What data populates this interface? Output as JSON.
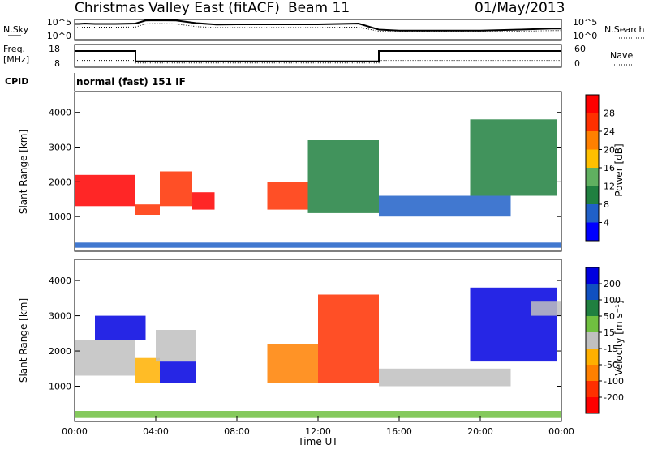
{
  "header": {
    "title": "Christmas Valley East (fitACF)",
    "beam": "Beam 11",
    "date": "01/May/2013"
  },
  "panels": {
    "nsky_label": "N.Sky",
    "nsearch_label": "N.Search",
    "freq_label": "Freq.",
    "freq_unit": "[MHz]",
    "nave_label": "Nave",
    "cpid_label": "CPID",
    "cpid_value": "normal (fast) 151 IF"
  },
  "chart_data": [
    {
      "type": "line",
      "title": "",
      "ylabel_left": "N.Sky",
      "ylabel_right": "N.Search",
      "left_ticks": [
        "10^5",
        "10^0"
      ],
      "right_ticks": [
        "10^5",
        "10^0"
      ],
      "x_hours": [
        0.0,
        0.2,
        0.5,
        1.0,
        2.0,
        3.0,
        3.5,
        4.0,
        5.0,
        6.0,
        7.0,
        8.0,
        10.0,
        12.0,
        13.0,
        14.0,
        15.0,
        16.0,
        18.0,
        20.0,
        22.0,
        23.5,
        24.0
      ],
      "series": [
        {
          "name": "N.Sky",
          "values": [
            0.78,
            0.78,
            0.8,
            0.78,
            0.78,
            0.8,
            0.95,
            0.96,
            0.95,
            0.82,
            0.75,
            0.76,
            0.76,
            0.76,
            0.78,
            0.8,
            0.5,
            0.45,
            0.45,
            0.45,
            0.5,
            0.55,
            0.55
          ]
        },
        {
          "name": "N.Search",
          "values": [
            0.6,
            0.6,
            0.62,
            0.62,
            0.62,
            0.63,
            0.78,
            0.8,
            0.78,
            0.65,
            0.6,
            0.6,
            0.6,
            0.6,
            0.62,
            0.62,
            0.42,
            0.4,
            0.4,
            0.4,
            0.42,
            0.45,
            0.45
          ]
        }
      ]
    },
    {
      "type": "line",
      "title": "",
      "ylabel_left": "Freq. [MHz]",
      "ylabel_right": "Nave",
      "left_ticks": [
        "18",
        "8"
      ],
      "right_ticks": [
        "60",
        "0"
      ],
      "segments": [
        {
          "x_start": 0,
          "x_end": 3.0,
          "freq": 15.5,
          "nave": 16
        },
        {
          "x_start": 3.0,
          "x_end": 15.0,
          "freq": 10.2,
          "nave": 8
        },
        {
          "x_start": 15.0,
          "x_end": 24.0,
          "freq": 15.5,
          "nave": 16
        }
      ]
    },
    {
      "type": "heatmap",
      "title": "",
      "ylabel": "Slant Range [km]",
      "yticks": [
        1000,
        2000,
        3000,
        4000
      ],
      "ylim": [
        0,
        4600
      ],
      "colorbar_label": "Power [dB]",
      "colorbar_ticks": [
        "4",
        "8",
        "12",
        "16",
        "20",
        "24",
        "28"
      ],
      "colors": [
        "#0000ff",
        "#2060c8",
        "#208040",
        "#60b060",
        "#ffc000",
        "#ff8000",
        "#ff3000",
        "#ff0000"
      ],
      "echo_regions": [
        {
          "x0": 0.0,
          "x1": 3.0,
          "r0": 1300,
          "r1": 2200,
          "level": 7
        },
        {
          "x0": 3.0,
          "x1": 4.2,
          "r0": 1050,
          "r1": 1350,
          "level": 6
        },
        {
          "x0": 4.2,
          "x1": 5.8,
          "r0": 1300,
          "r1": 2300,
          "level": 6
        },
        {
          "x0": 5.8,
          "x1": 6.9,
          "r0": 1200,
          "r1": 1700,
          "level": 7
        },
        {
          "x0": 9.5,
          "x1": 11.5,
          "r0": 1200,
          "r1": 2000,
          "level": 6
        },
        {
          "x0": 11.5,
          "x1": 15.0,
          "r0": 1100,
          "r1": 3200,
          "level": 2
        },
        {
          "x0": 15.0,
          "x1": 21.5,
          "r0": 1000,
          "r1": 1600,
          "level": 1
        },
        {
          "x0": 19.5,
          "x1": 23.8,
          "r0": 1600,
          "r1": 3800,
          "level": 2
        },
        {
          "x0": 0.0,
          "x1": 24.0,
          "r0": 100,
          "r1": 250,
          "level": 1
        }
      ]
    },
    {
      "type": "heatmap",
      "title": "",
      "xlabel": "Time UT",
      "ylabel": "Slant Range [km]",
      "xticks": [
        "00:00",
        "04:00",
        "08:00",
        "12:00",
        "16:00",
        "20:00",
        "00:00"
      ],
      "yticks": [
        1000,
        2000,
        3000,
        4000
      ],
      "ylim": [
        0,
        4600
      ],
      "colorbar_label": "Velocity [m s⁻¹]",
      "colorbar_ticks": [
        "200",
        "100",
        "50",
        "15",
        "-15",
        "-50",
        "-100",
        "-200"
      ],
      "colors": [
        "#0000e0",
        "#1050c0",
        "#208040",
        "#70c040",
        "#c0c0c0",
        "#ffb000",
        "#ff8000",
        "#ff3000",
        "#ff0000"
      ],
      "echo_regions": [
        {
          "x0": 0.0,
          "x1": 3.0,
          "r0": 1300,
          "r1": 2300,
          "level": 4
        },
        {
          "x0": 1.0,
          "x1": 3.5,
          "r0": 2300,
          "r1": 3000,
          "level": 0
        },
        {
          "x0": 3.0,
          "x1": 4.2,
          "r0": 1100,
          "r1": 1800,
          "level": 5
        },
        {
          "x0": 4.2,
          "x1": 6.0,
          "r0": 1100,
          "r1": 1700,
          "level": 0
        },
        {
          "x0": 4.0,
          "x1": 6.0,
          "r0": 1700,
          "r1": 2600,
          "level": 4
        },
        {
          "x0": 9.5,
          "x1": 12.0,
          "r0": 1100,
          "r1": 2200,
          "level": 6
        },
        {
          "x0": 12.0,
          "x1": 15.0,
          "r0": 1100,
          "r1": 3600,
          "level": 7
        },
        {
          "x0": 15.0,
          "x1": 21.5,
          "r0": 1000,
          "r1": 1500,
          "level": 4
        },
        {
          "x0": 19.5,
          "x1": 23.8,
          "r0": 1700,
          "r1": 3800,
          "level": 0
        },
        {
          "x0": 22.5,
          "x1": 24.0,
          "r0": 3000,
          "r1": 3400,
          "level": 4
        },
        {
          "x0": 0.0,
          "x1": 24.0,
          "r0": 100,
          "r1": 300,
          "level": 3
        }
      ]
    }
  ]
}
